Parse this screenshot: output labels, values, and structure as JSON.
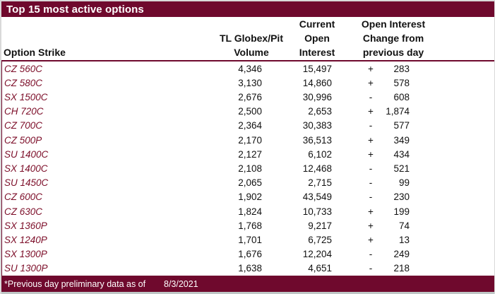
{
  "colors": {
    "maroon": "#6f092d",
    "strike_text": "#7c0d28"
  },
  "title": "Top 15 most active options",
  "table": {
    "columns": {
      "strike": "Option Strike",
      "volume": [
        "TL Globex/Pit",
        "Volume"
      ],
      "open_interest": [
        "Current",
        "Open",
        "Interest"
      ],
      "change": [
        "Open Interest",
        "Change from",
        "previous day"
      ]
    },
    "rows": [
      {
        "strike": "CZ 560C",
        "volume": "4,346",
        "open_interest": "15,497",
        "sign": "+",
        "change": "283"
      },
      {
        "strike": "CZ 580C",
        "volume": "3,130",
        "open_interest": "14,860",
        "sign": "+",
        "change": "578"
      },
      {
        "strike": "SX 1500C",
        "volume": "2,676",
        "open_interest": "30,996",
        "sign": "-",
        "change": "608"
      },
      {
        "strike": "CH 720C",
        "volume": "2,500",
        "open_interest": "2,653",
        "sign": "+",
        "change": "1,874"
      },
      {
        "strike": "CZ 700C",
        "volume": "2,364",
        "open_interest": "30,383",
        "sign": "-",
        "change": "577"
      },
      {
        "strike": "CZ 500P",
        "volume": "2,170",
        "open_interest": "36,513",
        "sign": "+",
        "change": "349"
      },
      {
        "strike": "SU 1400C",
        "volume": "2,127",
        "open_interest": "6,102",
        "sign": "+",
        "change": "434"
      },
      {
        "strike": "SX 1400C",
        "volume": "2,108",
        "open_interest": "12,468",
        "sign": "-",
        "change": "521"
      },
      {
        "strike": "SU 1450C",
        "volume": "2,065",
        "open_interest": "2,715",
        "sign": "-",
        "change": "99"
      },
      {
        "strike": "CZ 600C",
        "volume": "1,902",
        "open_interest": "43,549",
        "sign": "-",
        "change": "230"
      },
      {
        "strike": "CZ 630C",
        "volume": "1,824",
        "open_interest": "10,733",
        "sign": "+",
        "change": "199"
      },
      {
        "strike": "SX 1360P",
        "volume": "1,768",
        "open_interest": "9,217",
        "sign": "+",
        "change": "74"
      },
      {
        "strike": "SX 1240P",
        "volume": "1,701",
        "open_interest": "6,725",
        "sign": "+",
        "change": "13"
      },
      {
        "strike": "SX 1300P",
        "volume": "1,676",
        "open_interest": "12,204",
        "sign": "-",
        "change": "249"
      },
      {
        "strike": "SU 1300P",
        "volume": "1,638",
        "open_interest": "4,651",
        "sign": "-",
        "change": "218"
      }
    ]
  },
  "footer": {
    "note": "*Previous day preliminary data as of",
    "date": "8/3/2021"
  }
}
